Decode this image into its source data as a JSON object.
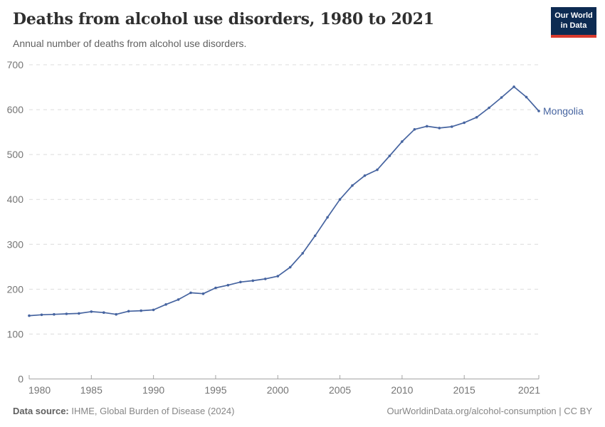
{
  "header": {
    "title": "Deaths from alcohol use disorders, 1980 to 2021",
    "subtitle": "Annual number of deaths from alcohol use disorders."
  },
  "logo": {
    "line1": "Our World",
    "line2": "in Data"
  },
  "chart_data": {
    "type": "line",
    "title": "Deaths from alcohol use disorders, 1980 to 2021",
    "entity": "Mongolia",
    "xlabel": "",
    "ylabel": "",
    "xlim": [
      1980,
      2021
    ],
    "ylim": [
      0,
      700
    ],
    "xticks": [
      1980,
      1985,
      1990,
      1995,
      2000,
      2005,
      2010,
      2015,
      2021
    ],
    "yticks": [
      0,
      100,
      200,
      300,
      400,
      500,
      600,
      700
    ],
    "grid": "horizontal-dashed",
    "legend_position": "end-of-line-label",
    "x": [
      1980,
      1981,
      1982,
      1983,
      1984,
      1985,
      1986,
      1987,
      1988,
      1989,
      1990,
      1991,
      1992,
      1993,
      1994,
      1995,
      1996,
      1997,
      1998,
      1999,
      2000,
      2001,
      2002,
      2003,
      2004,
      2005,
      2006,
      2007,
      2008,
      2009,
      2010,
      2011,
      2012,
      2013,
      2014,
      2015,
      2016,
      2017,
      2018,
      2019,
      2020,
      2021
    ],
    "series": [
      {
        "name": "Mongolia",
        "values": [
          141,
          143,
          144,
          145,
          146,
          150,
          148,
          144,
          151,
          152,
          154,
          166,
          177,
          192,
          190,
          203,
          209,
          216,
          219,
          223,
          229,
          249,
          280,
          319,
          360,
          400,
          431,
          453,
          466,
          497,
          529,
          556,
          563,
          559,
          562,
          571,
          583,
          604,
          627,
          651,
          628,
          597
        ]
      }
    ]
  },
  "footer": {
    "source_label": "Data source:",
    "source_text": " IHME, Global Burden of Disease (2024)",
    "link_text": "OurWorldinData.org/alcohol-consumption | CC BY"
  },
  "colors": {
    "line": "#4664a0",
    "gridline": "#dcdcdc",
    "axis_line": "#a3a3a3",
    "axis_text": "#757575",
    "title_text": "#2f2f2f",
    "subtitle_text": "#616161",
    "footer_text": "#868686",
    "footer_label": "#5f5f5f",
    "logo_bg": "#0d2b52",
    "logo_bar": "#d93a2e",
    "background": "#ffffff"
  }
}
